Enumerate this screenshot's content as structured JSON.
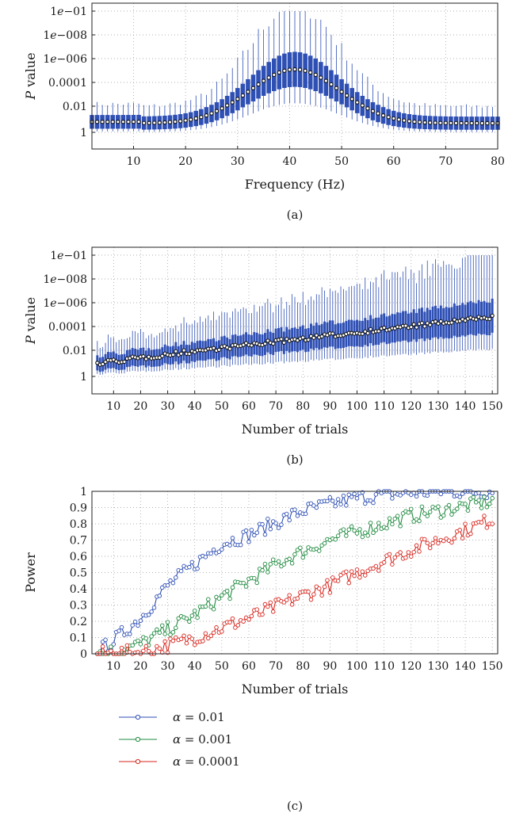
{
  "chart_data": [
    {
      "type": "box",
      "panel_label": "(a)",
      "xlabel": "Frequency (Hz)",
      "ylabel": "P value",
      "x_ticks": [
        10,
        20,
        30,
        40,
        50,
        60,
        70,
        80
      ],
      "xlim": [
        2,
        80
      ],
      "y_scale": "log (inverted)",
      "y_ticks": [
        "1e−01",
        "1e−008",
        "1e−006",
        "0.0001",
        "0.01",
        "1"
      ],
      "ylim_exponent": [
        0,
        -10
      ],
      "grid": "dotted",
      "box_color": "#2e4fb4",
      "series_description": "one box per frequency bin, x = 2 to 80 Hz",
      "profile": {
        "peak_x": 41,
        "peak_median_exp": -5.1,
        "baseline_median_exp": -0.7
      }
    },
    {
      "type": "box",
      "panel_label": "(b)",
      "xlabel": "Number of trials",
      "ylabel": "P value",
      "x_ticks": [
        10,
        20,
        30,
        40,
        50,
        60,
        70,
        80,
        90,
        100,
        110,
        120,
        130,
        140,
        150
      ],
      "xlim": [
        2,
        152
      ],
      "y_scale": "log (inverted)",
      "y_ticks": [
        "1e−01",
        "1e−008",
        "1e−006",
        "0.0001",
        "0.01",
        "1"
      ],
      "ylim_exponent": [
        0,
        -10
      ],
      "grid": "dotted",
      "box_color": "#2e4fb4",
      "series_description": "one box per trial count, x = 4 to 150",
      "profile": {
        "start_median_exp": -1.0,
        "end_median_exp": -4.8
      }
    },
    {
      "type": "line",
      "panel_label": "(c)",
      "xlabel": "Number of trials",
      "ylabel": "Power",
      "x_ticks": [
        10,
        20,
        30,
        40,
        50,
        60,
        70,
        80,
        90,
        100,
        110,
        120,
        130,
        140,
        150
      ],
      "y_ticks": [
        "0",
        "0.1",
        "0.2",
        "0.3",
        "0.4",
        "0.5",
        "0.6",
        "0.7",
        "0.8",
        "0.9",
        "1"
      ],
      "xlim": [
        2,
        152
      ],
      "ylim": [
        0,
        1
      ],
      "grid": "dotted",
      "legend_position": "below",
      "x": [
        4,
        150
      ],
      "series": [
        {
          "name": "α = 0.01",
          "color": "#2e4fb4",
          "anchors": [
            [
              4,
              0.01
            ],
            [
              10,
              0.08
            ],
            [
              20,
              0.22
            ],
            [
              30,
              0.42
            ],
            [
              40,
              0.55
            ],
            [
              50,
              0.68
            ],
            [
              60,
              0.73
            ],
            [
              70,
              0.81
            ],
            [
              80,
              0.88
            ],
            [
              90,
              0.92
            ],
            [
              100,
              0.96
            ],
            [
              110,
              0.98
            ],
            [
              120,
              0.99
            ],
            [
              130,
              1.0
            ],
            [
              150,
              1.0
            ]
          ]
        },
        {
          "name": "α = 0.001",
          "color": "#1e8a3e",
          "anchors": [
            [
              4,
              0.0
            ],
            [
              12,
              0.02
            ],
            [
              20,
              0.06
            ],
            [
              30,
              0.15
            ],
            [
              40,
              0.24
            ],
            [
              50,
              0.35
            ],
            [
              60,
              0.45
            ],
            [
              70,
              0.55
            ],
            [
              80,
              0.63
            ],
            [
              90,
              0.7
            ],
            [
              100,
              0.75
            ],
            [
              110,
              0.8
            ],
            [
              120,
              0.85
            ],
            [
              130,
              0.88
            ],
            [
              140,
              0.91
            ],
            [
              150,
              0.94
            ]
          ]
        },
        {
          "name": "α = 0.0001",
          "color": "#d7261e",
          "anchors": [
            [
              4,
              0.0
            ],
            [
              20,
              0.01
            ],
            [
              30,
              0.05
            ],
            [
              40,
              0.1
            ],
            [
              50,
              0.16
            ],
            [
              60,
              0.22
            ],
            [
              70,
              0.29
            ],
            [
              80,
              0.36
            ],
            [
              90,
              0.42
            ],
            [
              100,
              0.5
            ],
            [
              110,
              0.57
            ],
            [
              120,
              0.64
            ],
            [
              130,
              0.7
            ],
            [
              140,
              0.76
            ],
            [
              150,
              0.83
            ]
          ]
        }
      ]
    }
  ]
}
